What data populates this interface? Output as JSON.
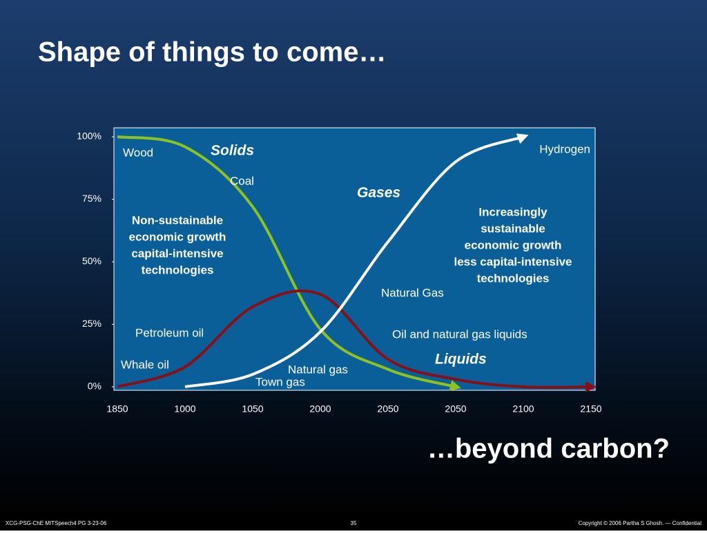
{
  "chart_data": {
    "type": "line",
    "title": "Shape of things to come…",
    "subtitle": "…beyond carbon?",
    "categories": [
      "1850",
      "1000",
      "1050",
      "2000",
      "2050",
      "2050",
      "2100",
      "2150"
    ],
    "series": [
      {
        "name": "Solids",
        "color": "#8dc21f",
        "values": [
          100,
          96,
          72,
          23,
          7,
          0,
          null,
          null
        ]
      },
      {
        "name": "Liquids",
        "color": "#8a0f14",
        "values": [
          0,
          8,
          32,
          37,
          11,
          3,
          0,
          0
        ]
      },
      {
        "name": "Gases",
        "color": "#ffffff",
        "values": [
          null,
          0,
          5,
          22,
          58,
          90,
          100,
          null
        ]
      }
    ],
    "ylim": [
      -1.4,
      103.6
    ],
    "yticks": [
      {
        "value": 0,
        "label": "0%"
      },
      {
        "value": 25,
        "label": "25%"
      },
      {
        "value": 50,
        "label": "50%"
      },
      {
        "value": 75,
        "label": "75%"
      },
      {
        "value": 100,
        "label": "100%"
      }
    ],
    "annotations": [
      "Wood",
      "Coal",
      "Hydrogen",
      "Petroleum oil",
      "Whale oil",
      "Natural gas",
      "Town gas",
      "Natural Gas",
      "Oil and natural gas liquids"
    ],
    "left_note": [
      "Non-sustainable",
      "economic growth",
      "capital-intensive",
      "technologies"
    ],
    "right_note": [
      "Increasingly",
      "sustainable",
      "economic growth",
      "less capital-intensive",
      "technologies"
    ]
  },
  "footer": {
    "left": "XCG-PSG-ChE MITSpeech4 PG 3-23-06",
    "page": "35",
    "right": "Copyright © 2006 Partha S Ghosh. — Confidential"
  }
}
